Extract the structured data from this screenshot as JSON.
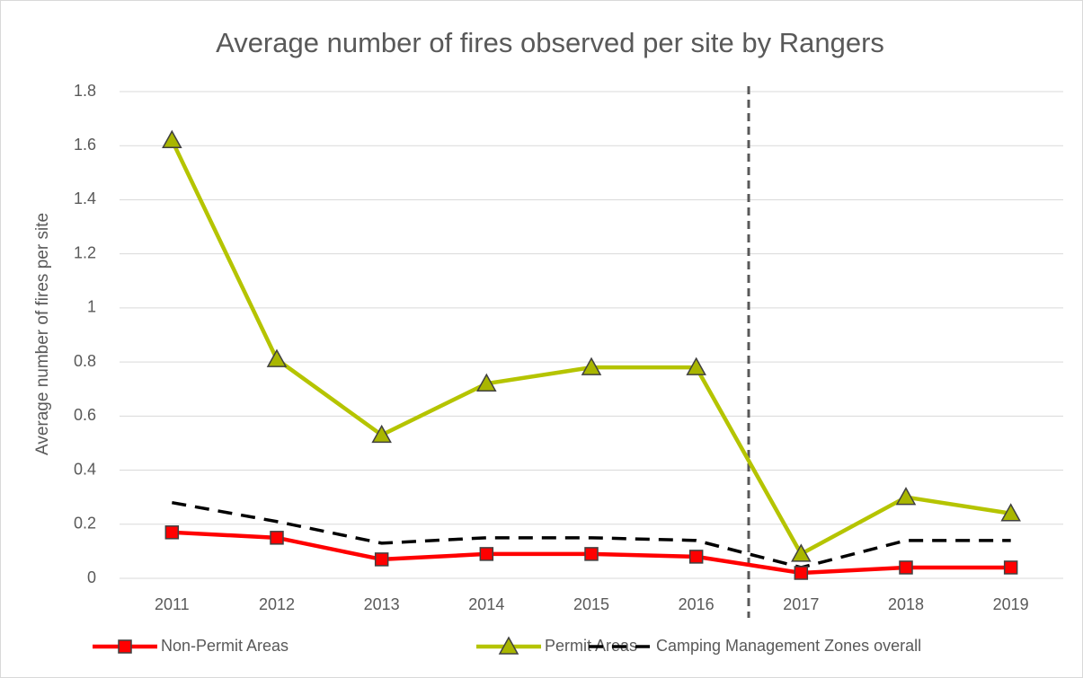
{
  "chart_data": {
    "type": "line",
    "title": "Average number of fires observed per site by Rangers",
    "ylabel": "Average number of fires per site",
    "categories": [
      "2011",
      "2012",
      "2013",
      "2014",
      "2015",
      "2016",
      "2017",
      "2018",
      "2019"
    ],
    "series": [
      {
        "name": "Non-Permit Areas",
        "color": "#ff0000",
        "marker": "square",
        "dash": false,
        "values": [
          0.17,
          0.15,
          0.07,
          0.09,
          0.09,
          0.08,
          0.02,
          0.04,
          0.04
        ]
      },
      {
        "name": "Permit Areas",
        "color": "#b5c400",
        "marker": "triangle",
        "dash": false,
        "values": [
          1.62,
          0.81,
          0.53,
          0.72,
          0.78,
          0.78,
          0.09,
          0.3,
          0.24
        ]
      },
      {
        "name": "Camping Management Zones overall",
        "color": "#000000",
        "marker": "none",
        "dash": true,
        "values": [
          0.28,
          0.21,
          0.13,
          0.15,
          0.15,
          0.14,
          0.04,
          0.14,
          0.14
        ]
      }
    ],
    "ylim": [
      0,
      1.8
    ],
    "yticks": [
      0,
      0.2,
      0.4,
      0.6,
      0.8,
      1,
      1.2,
      1.4,
      1.6,
      1.8
    ],
    "grid": true,
    "legend": "bottom"
  }
}
